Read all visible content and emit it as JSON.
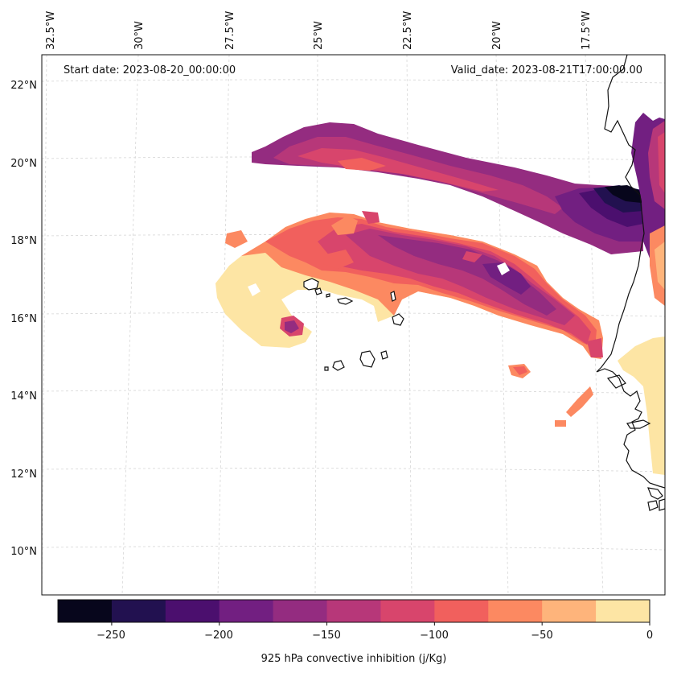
{
  "start_date_text": "Start date: 2023-08-20_00:00:00",
  "valid_date_text": "Valid_date: 2023-08-21T17:00:00.00",
  "lon_labels": [
    "32.5°W",
    "30°W",
    "27.5°W",
    "25°W",
    "22.5°W",
    "20°W",
    "17.5°W"
  ],
  "lat_labels": [
    "22°N",
    "20°N",
    "18°N",
    "16°N",
    "14°N",
    "12°N",
    "10°N"
  ],
  "colorbar": {
    "label": "925 hPa convective inhibition (j/Kg)",
    "ticks": [
      "−250",
      "−200",
      "−150",
      "−100",
      "−50",
      "0"
    ],
    "levels": [
      -275,
      -250,
      -225,
      -200,
      -175,
      -150,
      -125,
      -100,
      -75,
      -50,
      -25,
      0
    ],
    "colors": [
      "#07061c",
      "#221150",
      "#4b0f6e",
      "#721f81",
      "#942c80",
      "#b73779",
      "#d8456c",
      "#f1605d",
      "#fc8961",
      "#feb47b",
      "#fde5a4"
    ]
  },
  "colors": {
    "coastline": "#111111",
    "grid": "#cfcfcf"
  }
}
